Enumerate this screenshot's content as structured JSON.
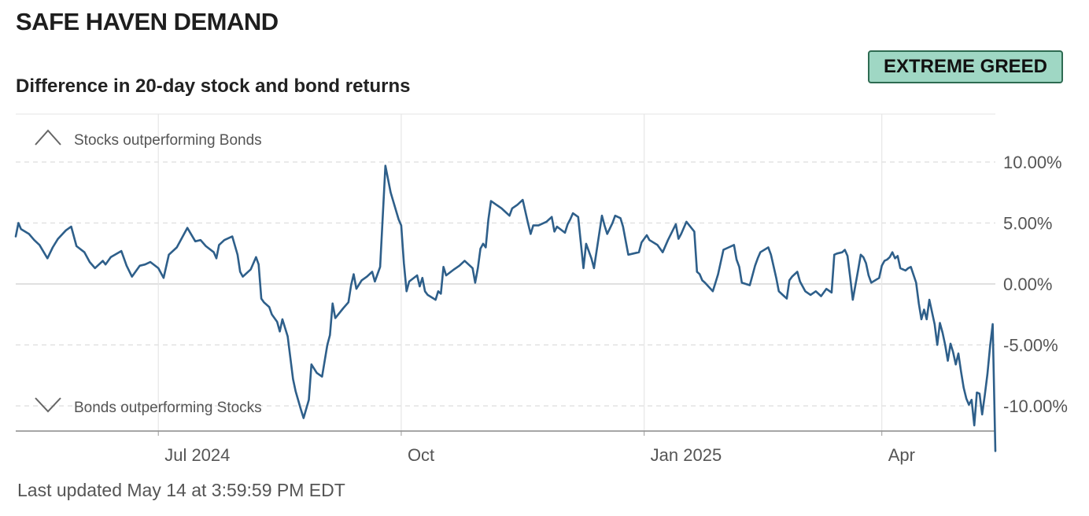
{
  "header": {
    "title": "SAFE HAVEN DEMAND",
    "subtitle": "Difference in 20-day stock and bond returns",
    "rating": "EXTREME GREED",
    "rating_color": "#9fd7c4"
  },
  "footer": {
    "last_updated": "Last updated May 14 at 3:59:59 PM EDT"
  },
  "chart_data": {
    "type": "line",
    "title": "Difference in 20-day stock and bond returns",
    "xlabel": "",
    "ylabel": "",
    "xlim": [
      "2024-05-08",
      "2025-05-14"
    ],
    "ylim": [
      -12,
      14
    ],
    "grid": true,
    "x_ticks": [
      {
        "date": "2024-07-01",
        "label": "Jul 2024"
      },
      {
        "date": "2024-10-01",
        "label": "Oct"
      },
      {
        "date": "2025-01-01",
        "label": "Jan 2025"
      },
      {
        "date": "2025-04-01",
        "label": "Apr"
      }
    ],
    "y_ticks": [
      {
        "value": 10,
        "label": "10.00%"
      },
      {
        "value": 5,
        "label": "5.00%"
      },
      {
        "value": 0,
        "label": "0.00%"
      },
      {
        "value": -5,
        "label": "-5.00%"
      },
      {
        "value": -10,
        "label": "-10.00%"
      }
    ],
    "annotations": {
      "top": "Stocks outperforming Bonds",
      "bottom": "Bonds outperforming Stocks"
    },
    "line_color": "#2e5f8a",
    "series": [
      {
        "name": "",
        "points": [
          [
            "2024-05-08",
            3.9
          ],
          [
            "2024-05-09",
            5.0
          ],
          [
            "2024-05-10",
            4.5
          ],
          [
            "2024-05-13",
            4.1
          ],
          [
            "2024-05-15",
            3.6
          ],
          [
            "2024-05-17",
            3.2
          ],
          [
            "2024-05-20",
            2.1
          ],
          [
            "2024-05-22",
            3.0
          ],
          [
            "2024-05-24",
            3.7
          ],
          [
            "2024-05-27",
            4.4
          ],
          [
            "2024-05-29",
            4.7
          ],
          [
            "2024-05-31",
            3.1
          ],
          [
            "2024-06-03",
            2.6
          ],
          [
            "2024-06-05",
            1.8
          ],
          [
            "2024-06-07",
            1.3
          ],
          [
            "2024-06-10",
            1.9
          ],
          [
            "2024-06-11",
            1.6
          ],
          [
            "2024-06-13",
            2.2
          ],
          [
            "2024-06-17",
            2.7
          ],
          [
            "2024-06-19",
            1.5
          ],
          [
            "2024-06-21",
            0.6
          ],
          [
            "2024-06-24",
            1.5
          ],
          [
            "2024-06-26",
            1.6
          ],
          [
            "2024-06-28",
            1.8
          ],
          [
            "2024-07-01",
            1.3
          ],
          [
            "2024-07-03",
            0.5
          ],
          [
            "2024-07-05",
            2.4
          ],
          [
            "2024-07-08",
            3.0
          ],
          [
            "2024-07-10",
            3.8
          ],
          [
            "2024-07-12",
            4.6
          ],
          [
            "2024-07-15",
            3.5
          ],
          [
            "2024-07-17",
            3.6
          ],
          [
            "2024-07-19",
            3.1
          ],
          [
            "2024-07-22",
            2.6
          ],
          [
            "2024-07-23",
            2.1
          ],
          [
            "2024-07-24",
            3.2
          ],
          [
            "2024-07-26",
            3.6
          ],
          [
            "2024-07-29",
            3.9
          ],
          [
            "2024-07-31",
            2.4
          ],
          [
            "2024-08-01",
            1.0
          ],
          [
            "2024-08-02",
            0.6
          ],
          [
            "2024-08-05",
            1.2
          ],
          [
            "2024-08-07",
            2.2
          ],
          [
            "2024-08-08",
            1.6
          ],
          [
            "2024-08-09",
            -1.2
          ],
          [
            "2024-08-10",
            -1.5
          ],
          [
            "2024-08-12",
            -1.9
          ],
          [
            "2024-08-13",
            -2.5
          ],
          [
            "2024-08-15",
            -3.1
          ],
          [
            "2024-08-16",
            -3.9
          ],
          [
            "2024-08-17",
            -2.9
          ],
          [
            "2024-08-19",
            -4.3
          ],
          [
            "2024-08-21",
            -7.8
          ],
          [
            "2024-08-22",
            -8.8
          ],
          [
            "2024-08-24",
            -10.3
          ],
          [
            "2024-08-25",
            -11.0
          ],
          [
            "2024-08-27",
            -9.5
          ],
          [
            "2024-08-28",
            -6.6
          ],
          [
            "2024-08-30",
            -7.3
          ],
          [
            "2024-09-01",
            -7.6
          ],
          [
            "2024-09-03",
            -5.0
          ],
          [
            "2024-09-04",
            -4.2
          ],
          [
            "2024-09-05",
            -1.6
          ],
          [
            "2024-09-06",
            -2.8
          ],
          [
            "2024-09-09",
            -2.0
          ],
          [
            "2024-09-11",
            -1.5
          ],
          [
            "2024-09-12",
            -0.1
          ],
          [
            "2024-09-13",
            0.8
          ],
          [
            "2024-09-14",
            -0.4
          ],
          [
            "2024-09-16",
            0.3
          ],
          [
            "2024-09-18",
            0.6
          ],
          [
            "2024-09-20",
            1.0
          ],
          [
            "2024-09-21",
            0.2
          ],
          [
            "2024-09-23",
            1.4
          ],
          [
            "2024-09-25",
            9.7
          ],
          [
            "2024-09-27",
            7.5
          ],
          [
            "2024-09-30",
            5.3
          ],
          [
            "2024-10-01",
            4.8
          ],
          [
            "2024-10-02",
            1.7
          ],
          [
            "2024-10-03",
            -0.6
          ],
          [
            "2024-10-04",
            0.2
          ],
          [
            "2024-10-07",
            0.7
          ],
          [
            "2024-10-08",
            -0.2
          ],
          [
            "2024-10-09",
            0.5
          ],
          [
            "2024-10-10",
            -0.6
          ],
          [
            "2024-10-11",
            -0.9
          ],
          [
            "2024-10-14",
            -1.3
          ],
          [
            "2024-10-15",
            -0.6
          ],
          [
            "2024-10-16",
            -0.8
          ],
          [
            "2024-10-17",
            1.4
          ],
          [
            "2024-10-18",
            0.7
          ],
          [
            "2024-10-21",
            1.2
          ],
          [
            "2024-10-23",
            1.5
          ],
          [
            "2024-10-25",
            1.9
          ],
          [
            "2024-10-28",
            1.3
          ],
          [
            "2024-10-29",
            0.1
          ],
          [
            "2024-10-30",
            1.3
          ],
          [
            "2024-10-31",
            2.9
          ],
          [
            "2024-11-01",
            3.3
          ],
          [
            "2024-11-02",
            3.0
          ],
          [
            "2024-11-03",
            5.3
          ],
          [
            "2024-11-04",
            6.8
          ],
          [
            "2024-11-06",
            6.5
          ],
          [
            "2024-11-08",
            6.2
          ],
          [
            "2024-11-09",
            6.0
          ],
          [
            "2024-11-11",
            5.6
          ],
          [
            "2024-11-12",
            6.2
          ],
          [
            "2024-11-14",
            6.5
          ],
          [
            "2024-11-16",
            6.9
          ],
          [
            "2024-11-18",
            5.0
          ],
          [
            "2024-11-19",
            4.1
          ],
          [
            "2024-11-20",
            4.8
          ],
          [
            "2024-11-22",
            4.8
          ],
          [
            "2024-11-25",
            5.1
          ],
          [
            "2024-11-27",
            5.5
          ],
          [
            "2024-11-28",
            4.3
          ],
          [
            "2024-11-29",
            4.7
          ],
          [
            "2024-12-02",
            4.2
          ],
          [
            "2024-12-03",
            4.9
          ],
          [
            "2024-12-04",
            5.3
          ],
          [
            "2024-12-05",
            5.8
          ],
          [
            "2024-12-07",
            5.5
          ],
          [
            "2024-12-09",
            1.3
          ],
          [
            "2024-12-10",
            3.3
          ],
          [
            "2024-12-12",
            2.1
          ],
          [
            "2024-12-13",
            1.3
          ],
          [
            "2024-12-16",
            5.6
          ],
          [
            "2024-12-17",
            4.8
          ],
          [
            "2024-12-18",
            4.1
          ],
          [
            "2024-12-20",
            5.0
          ],
          [
            "2024-12-21",
            5.6
          ],
          [
            "2024-12-23",
            5.4
          ],
          [
            "2024-12-24",
            4.7
          ],
          [
            "2024-12-26",
            2.4
          ],
          [
            "2024-12-30",
            2.6
          ],
          [
            "2024-12-31",
            3.4
          ],
          [
            "2025-01-02",
            4.0
          ],
          [
            "2025-01-03",
            3.6
          ],
          [
            "2025-01-06",
            3.2
          ],
          [
            "2025-01-08",
            2.6
          ],
          [
            "2025-01-10",
            3.6
          ],
          [
            "2025-01-13",
            4.9
          ],
          [
            "2025-01-14",
            3.7
          ],
          [
            "2025-01-15",
            4.1
          ],
          [
            "2025-01-16",
            4.6
          ],
          [
            "2025-01-17",
            5.1
          ],
          [
            "2025-01-20",
            4.3
          ],
          [
            "2025-01-21",
            1.0
          ],
          [
            "2025-01-22",
            0.8
          ],
          [
            "2025-01-23",
            0.3
          ],
          [
            "2025-01-24",
            0.1
          ],
          [
            "2025-01-27",
            -0.6
          ],
          [
            "2025-01-28",
            0.1
          ],
          [
            "2025-01-29",
            0.8
          ],
          [
            "2025-01-31",
            2.8
          ],
          [
            "2025-02-02",
            3.0
          ],
          [
            "2025-02-04",
            3.2
          ],
          [
            "2025-02-05",
            2.0
          ],
          [
            "2025-02-06",
            1.4
          ],
          [
            "2025-02-07",
            0.1
          ],
          [
            "2025-02-10",
            -0.1
          ],
          [
            "2025-02-12",
            1.5
          ],
          [
            "2025-02-13",
            2.1
          ],
          [
            "2025-02-14",
            2.6
          ],
          [
            "2025-02-17",
            3.0
          ],
          [
            "2025-02-18",
            2.4
          ],
          [
            "2025-02-20",
            0.5
          ],
          [
            "2025-02-21",
            -0.6
          ],
          [
            "2025-02-23",
            -1.0
          ],
          [
            "2025-02-24",
            -1.2
          ],
          [
            "2025-02-25",
            0.3
          ],
          [
            "2025-02-26",
            0.6
          ],
          [
            "2025-02-28",
            1.0
          ],
          [
            "2025-03-01",
            0.2
          ],
          [
            "2025-03-03",
            -0.6
          ],
          [
            "2025-03-05",
            -0.9
          ],
          [
            "2025-03-07",
            -0.6
          ],
          [
            "2025-03-09",
            -1.0
          ],
          [
            "2025-03-11",
            -0.4
          ],
          [
            "2025-03-13",
            -0.7
          ],
          [
            "2025-03-14",
            2.4
          ],
          [
            "2025-03-15",
            2.5
          ],
          [
            "2025-03-17",
            2.6
          ],
          [
            "2025-03-18",
            2.8
          ],
          [
            "2025-03-19",
            2.3
          ],
          [
            "2025-03-20",
            0.6
          ],
          [
            "2025-03-21",
            -1.3
          ],
          [
            "2025-03-23",
            1.1
          ],
          [
            "2025-03-24",
            2.4
          ],
          [
            "2025-03-25",
            2.2
          ],
          [
            "2025-03-26",
            1.7
          ],
          [
            "2025-03-27",
            0.7
          ],
          [
            "2025-03-28",
            0.1
          ],
          [
            "2025-03-31",
            0.5
          ],
          [
            "2025-04-01",
            1.5
          ],
          [
            "2025-04-02",
            1.9
          ],
          [
            "2025-04-03",
            2.0
          ],
          [
            "2025-04-04",
            2.2
          ],
          [
            "2025-04-05",
            2.6
          ],
          [
            "2025-04-06",
            2.1
          ],
          [
            "2025-04-07",
            2.3
          ],
          [
            "2025-04-08",
            1.3
          ],
          [
            "2025-04-09",
            1.2
          ],
          [
            "2025-04-10",
            1.1
          ],
          [
            "2025-04-11",
            1.3
          ],
          [
            "2025-04-12",
            1.4
          ],
          [
            "2025-04-14",
            0.1
          ],
          [
            "2025-04-15",
            -1.6
          ],
          [
            "2025-04-16",
            -2.9
          ],
          [
            "2025-04-17",
            -2.1
          ],
          [
            "2025-04-18",
            -2.9
          ],
          [
            "2025-04-19",
            -1.3
          ],
          [
            "2025-04-21",
            -3.3
          ],
          [
            "2025-04-22",
            -5.0
          ],
          [
            "2025-04-23",
            -3.2
          ],
          [
            "2025-04-24",
            -4.0
          ],
          [
            "2025-04-25",
            -5.0
          ],
          [
            "2025-04-26",
            -6.3
          ],
          [
            "2025-04-27",
            -4.9
          ],
          [
            "2025-04-28",
            -5.6
          ],
          [
            "2025-04-29",
            -6.6
          ],
          [
            "2025-04-30",
            -5.7
          ],
          [
            "2025-05-01",
            -7.2
          ],
          [
            "2025-05-02",
            -8.5
          ],
          [
            "2025-05-03",
            -9.4
          ],
          [
            "2025-05-04",
            -9.9
          ],
          [
            "2025-05-05",
            -9.5
          ],
          [
            "2025-05-06",
            -11.6
          ],
          [
            "2025-05-07",
            -8.9
          ],
          [
            "2025-05-08",
            -9.0
          ],
          [
            "2025-05-09",
            -10.7
          ],
          [
            "2025-05-10",
            -9.1
          ],
          [
            "2025-05-11",
            -7.4
          ],
          [
            "2025-05-12",
            -5.1
          ],
          [
            "2025-05-13",
            -3.3
          ],
          [
            "2025-05-14",
            -13.7
          ]
        ]
      }
    ]
  }
}
